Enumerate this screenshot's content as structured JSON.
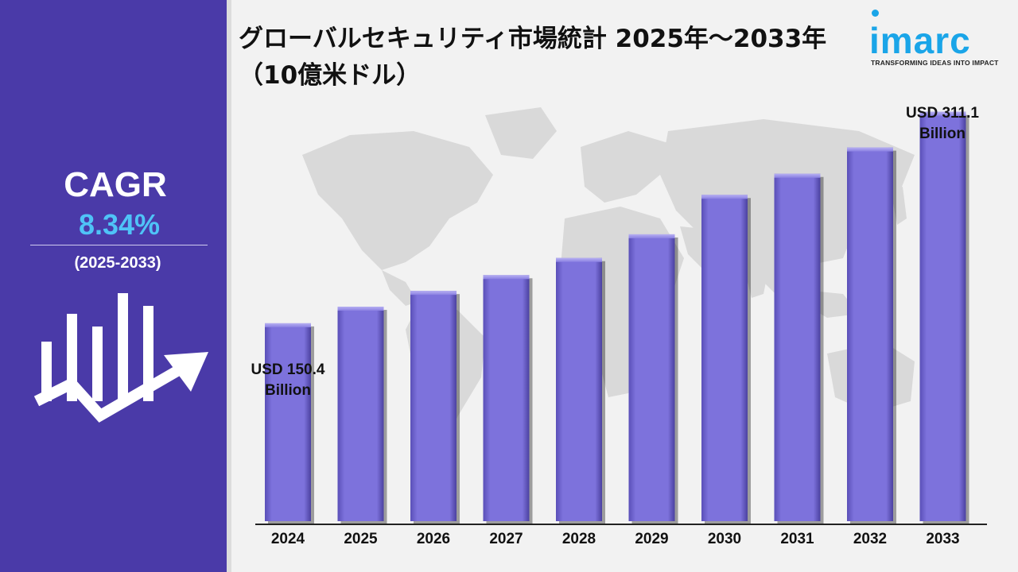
{
  "title": "グローバルセキュリティ市場統計 2025年～2033年（10億米ドル）",
  "logo": {
    "brand": "imarc",
    "tagline": "TRANSFORMING IDEAS INTO IMPACT"
  },
  "cagr": {
    "label": "CAGR",
    "value": "8.34%",
    "period": "(2025-2033)"
  },
  "colors": {
    "panel": "#4a3aa8",
    "bar": "#7b70d8",
    "accent": "#4fc3f7",
    "logo": "#1aa5e8"
  },
  "annotations": {
    "first_value": "USD 150.4",
    "first_unit": "Billion",
    "last_value": "USD 311.1",
    "last_unit": "Billion"
  },
  "chart_data": {
    "type": "bar",
    "title": "グローバルセキュリティ市場統計 2025年～2033年（10億米ドル）",
    "categories": [
      "2024",
      "2025",
      "2026",
      "2027",
      "2028",
      "2029",
      "2030",
      "2031",
      "2032",
      "2033"
    ],
    "values": [
      150.4,
      163,
      175,
      187,
      200,
      218,
      248,
      264,
      284,
      311.1
    ],
    "xlabel": "",
    "ylabel": "",
    "ylim": [
      0,
      320
    ],
    "grid": false,
    "legend": "none"
  }
}
